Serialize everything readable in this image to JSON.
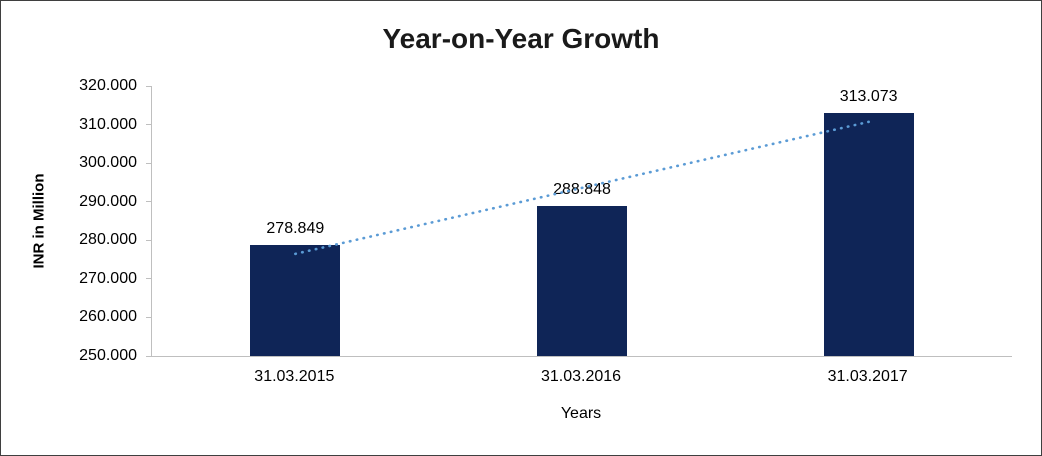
{
  "chart_data": {
    "type": "bar",
    "title": "Year-on-Year Growth",
    "categories": [
      "31.03.2015",
      "31.03.2016",
      "31.03.2017"
    ],
    "values": [
      278.849,
      288.848,
      313.073
    ],
    "value_labels": [
      "278.849",
      "288.848",
      "313.073"
    ],
    "xlabel": "Years",
    "ylabel": "INR in Million",
    "ylim": [
      250,
      320
    ],
    "ytick_values": [
      250,
      260,
      270,
      280,
      290,
      300,
      310,
      320
    ],
    "ytick_labels": [
      "250.000",
      "260.000",
      "270.000",
      "280.000",
      "290.000",
      "300.000",
      "310.000",
      "320.000"
    ],
    "grid": false,
    "legend": "none",
    "trendline": {
      "type": "linear",
      "style": "dotted"
    },
    "colors": {
      "bar": "#0f2557",
      "trendline": "#5b9bd5",
      "axis": "#bfbfbf",
      "text": "#000000",
      "title": "#1a1a1a"
    }
  }
}
